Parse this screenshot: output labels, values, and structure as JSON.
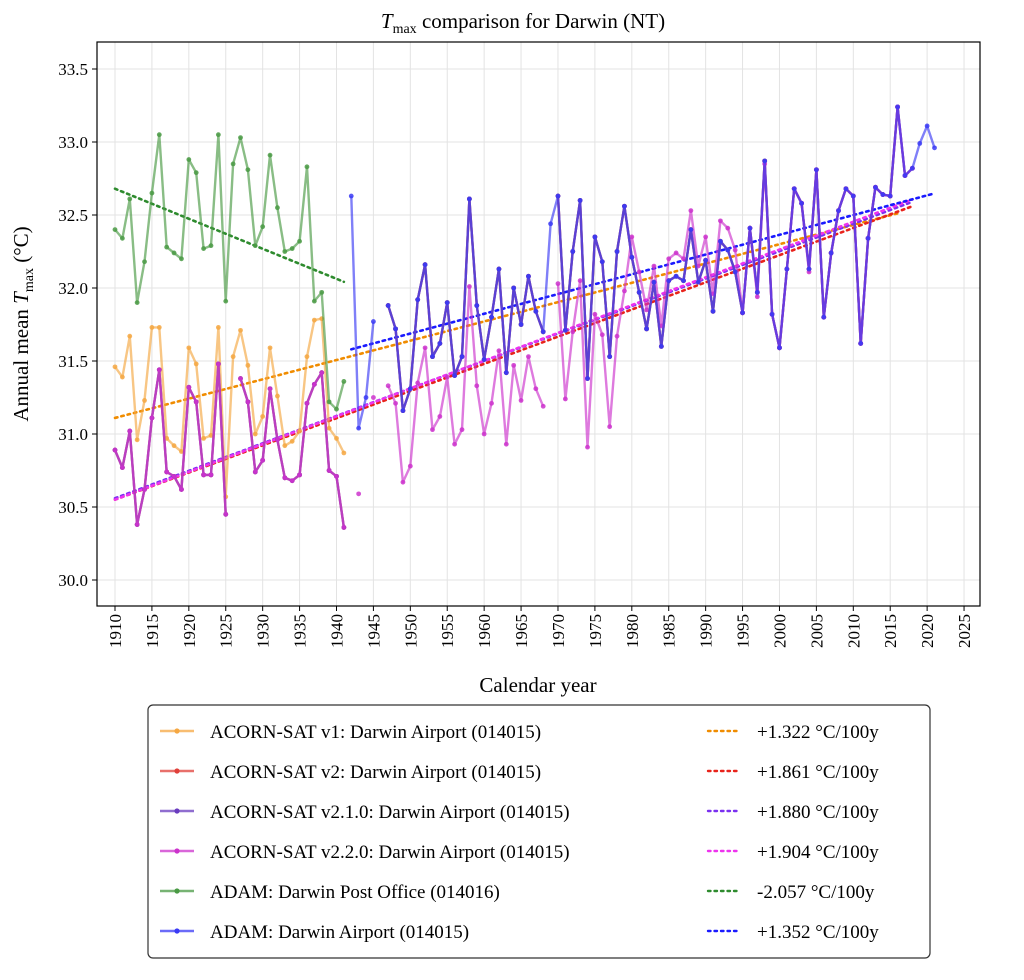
{
  "chart_data": {
    "type": "line",
    "title": {
      "symbol": "T",
      "sub": "max",
      "rest": " comparison for Darwin (NT)"
    },
    "xlabel": "Calendar year",
    "ylabel": {
      "pre": "Annual mean ",
      "symbol": "T",
      "sub": "max",
      "post": " (°C)"
    },
    "xlim": [
      1907.5,
      2029
    ],
    "ylim": [
      29.82,
      33.68
    ],
    "xticks": [
      "1910",
      "1915",
      "1920",
      "1925",
      "1930",
      "1935",
      "1940",
      "1945",
      "1950",
      "1955",
      "1960",
      "1965",
      "1970",
      "1975",
      "1980",
      "1985",
      "1990",
      "1995",
      "2000",
      "2005",
      "2010",
      "2015",
      "2020",
      "2025"
    ],
    "yticks": [
      "30.0",
      "30.5",
      "31.0",
      "31.5",
      "32.0",
      "32.5",
      "33.0",
      "33.5"
    ],
    "grid": true,
    "legend_position": "below",
    "series": [
      {
        "name": "ACORN-SAT v1: Darwin Airport (014015)",
        "color": "#f5a742",
        "start": 1910,
        "values": [
          31.46,
          31.39,
          31.67,
          30.96,
          31.23,
          31.73,
          31.73,
          30.97,
          30.92,
          30.88,
          31.59,
          31.48,
          30.97,
          30.99,
          31.73,
          30.57,
          31.53,
          31.71,
          31.47,
          31.0,
          31.12,
          31.59,
          31.26,
          30.92,
          30.95,
          31.02,
          31.53,
          31.78,
          31.79,
          31.04,
          30.97,
          30.87,
          null,
          null,
          null,
          null,
          null,
          31.88,
          31.72,
          31.16,
          31.31,
          31.92,
          32.16,
          31.53,
          31.62,
          31.9,
          31.4,
          31.53,
          32.61,
          31.88,
          31.51,
          31.8,
          32.13,
          31.42,
          32.0,
          31.75,
          32.08,
          31.84,
          31.7,
          null,
          32.63,
          31.71,
          32.25,
          32.6,
          31.38,
          32.35,
          32.18,
          31.53,
          32.25,
          32.56,
          32.21,
          31.97,
          31.72,
          32.04,
          31.6,
          32.05,
          32.08,
          32.05,
          32.4,
          32.04,
          32.19,
          31.84,
          32.32,
          32.26,
          32.11,
          31.83,
          32.41,
          31.97,
          32.87,
          31.82,
          31.59,
          32.13,
          32.68,
          32.58,
          32.13,
          32.81,
          31.8,
          32.24,
          32.53,
          32.68,
          32.63,
          31.62,
          32.34,
          32.69,
          32.64,
          32.63,
          33.24
        ],
        "trend": {
          "label": "+1.322 °C/100y",
          "color": "#f08c00",
          "start_year": 1910,
          "end_year": 2016,
          "start_value": 31.11,
          "slope_per_100y": 1.322
        }
      },
      {
        "name": "ACORN-SAT v2: Darwin Airport (014015)",
        "color": "#e0403a",
        "start": 1910,
        "values": [
          30.89,
          30.77,
          31.02,
          30.38,
          30.62,
          31.11,
          31.44,
          30.74,
          30.71,
          30.62,
          31.32,
          31.22,
          30.72,
          30.72,
          31.48,
          30.45,
          null,
          31.38,
          31.22,
          30.74,
          30.82,
          31.31,
          30.96,
          30.7,
          30.68,
          30.72,
          31.21,
          31.34,
          31.42,
          30.75,
          30.71,
          30.36,
          null,
          null,
          null,
          null,
          null,
          31.88,
          31.72,
          31.16,
          31.31,
          31.92,
          32.16,
          31.53,
          31.62,
          31.9,
          31.4,
          31.53,
          32.61,
          31.88,
          31.51,
          31.8,
          32.13,
          31.42,
          32.0,
          31.75,
          32.08,
          31.84,
          31.7,
          null,
          32.63,
          31.71,
          32.25,
          32.6,
          31.38,
          32.35,
          32.18,
          31.53,
          32.25,
          32.56,
          32.21,
          31.97,
          31.72,
          32.04,
          31.6,
          32.05,
          32.08,
          32.05,
          32.4,
          32.04,
          32.19,
          31.84,
          32.32,
          32.26,
          32.11,
          31.83,
          32.41,
          31.97,
          32.87,
          31.82,
          31.59,
          32.13,
          32.68,
          32.58,
          32.13,
          32.81,
          31.8,
          32.24,
          32.53,
          32.68,
          32.63,
          31.62,
          32.34,
          32.69,
          32.64,
          32.63,
          33.24,
          32.77,
          32.82
        ],
        "trend": {
          "label": "+1.861 °C/100y",
          "color": "#e8231b",
          "start_year": 1910,
          "end_year": 2018,
          "start_value": 30.55,
          "slope_per_100y": 1.861
        }
      },
      {
        "name": "ACORN-SAT v2.1.0: Darwin Airport (014015)",
        "color": "#6a3cbf",
        "start": 1910,
        "values": [
          30.89,
          30.77,
          31.02,
          30.38,
          30.62,
          31.11,
          31.44,
          30.74,
          30.71,
          30.62,
          31.32,
          31.22,
          30.72,
          30.72,
          31.48,
          30.45,
          null,
          31.38,
          31.22,
          30.74,
          30.82,
          31.31,
          30.96,
          30.7,
          30.68,
          30.72,
          31.21,
          31.34,
          31.42,
          30.75,
          30.71,
          30.36,
          null,
          null,
          null,
          null,
          null,
          31.88,
          31.72,
          31.16,
          31.31,
          31.92,
          32.16,
          31.53,
          31.62,
          31.9,
          31.4,
          31.53,
          32.61,
          31.88,
          31.51,
          31.8,
          32.13,
          31.42,
          32.0,
          31.75,
          32.08,
          31.84,
          31.7,
          null,
          32.63,
          31.71,
          32.25,
          32.6,
          31.38,
          32.35,
          32.18,
          31.53,
          32.25,
          32.56,
          32.21,
          31.97,
          31.72,
          32.04,
          31.6,
          32.05,
          32.08,
          32.05,
          32.4,
          32.04,
          32.19,
          31.84,
          32.32,
          32.26,
          32.11,
          31.83,
          32.41,
          31.97,
          32.87,
          31.82,
          31.59,
          32.13,
          32.68,
          32.58,
          32.13,
          32.81,
          31.8,
          32.24,
          32.53,
          32.68,
          32.63,
          31.62,
          32.34,
          32.69,
          32.64,
          32.63,
          33.24,
          32.77,
          32.82
        ],
        "trend": {
          "label": "+1.880 °C/100y",
          "color": "#7a30f0",
          "start_year": 1910,
          "end_year": 2018,
          "start_value": 30.56,
          "slope_per_100y": 1.88
        }
      },
      {
        "name": "ACORN-SAT v2.2.0: Darwin Airport (014015)",
        "color": "#cc33cc",
        "start": 1910,
        "values": [
          30.89,
          30.77,
          31.02,
          30.38,
          30.62,
          31.11,
          31.44,
          30.74,
          30.71,
          30.62,
          31.32,
          31.22,
          30.72,
          30.72,
          31.48,
          30.45,
          null,
          31.38,
          31.22,
          30.74,
          30.82,
          31.31,
          30.96,
          30.7,
          30.68,
          30.72,
          31.21,
          31.34,
          31.42,
          30.75,
          30.71,
          30.36,
          null,
          30.59,
          null,
          31.25,
          null,
          31.33,
          31.21,
          30.67,
          30.78,
          31.35,
          31.59,
          31.03,
          31.12,
          31.39,
          30.93,
          31.03,
          32.01,
          31.33,
          31.0,
          31.21,
          31.57,
          30.93,
          31.47,
          31.23,
          31.53,
          31.31,
          31.19,
          null,
          32.03,
          31.24,
          31.7,
          32.05,
          30.91,
          31.82,
          31.68,
          31.05,
          31.67,
          31.98,
          32.35,
          32.11,
          31.85,
          32.15,
          31.74,
          32.2,
          32.24,
          32.2,
          32.53,
          32.15,
          32.35,
          31.96,
          32.46,
          32.41,
          32.26,
          31.83,
          32.41,
          31.94,
          32.85,
          31.82,
          31.59,
          32.13,
          32.68,
          32.58,
          32.11,
          32.81,
          31.8,
          32.24,
          32.53,
          32.68,
          32.63,
          31.62,
          32.34,
          32.69,
          32.64,
          32.63,
          33.24,
          32.77,
          32.82
        ],
        "trend": {
          "label": "+1.904 °C/100y",
          "color": "#ee33ee",
          "start_year": 1910,
          "end_year": 2018,
          "start_value": 30.55,
          "slope_per_100y": 1.904
        }
      },
      {
        "name": "ADAM: Darwin Post Office (014016)",
        "color": "#4a9a44",
        "start": 1910,
        "values": [
          32.4,
          32.34,
          32.61,
          31.9,
          32.18,
          32.65,
          33.05,
          32.28,
          32.24,
          32.2,
          32.88,
          32.79,
          32.27,
          32.29,
          33.05,
          31.91,
          32.85,
          33.03,
          32.81,
          32.29,
          32.42,
          32.91,
          32.55,
          32.25,
          32.27,
          32.32,
          32.83,
          31.91,
          31.97,
          31.22,
          31.17,
          31.36
        ],
        "trend": {
          "label": "-2.057 °C/100y",
          "color": "#2e8b2e",
          "start_year": 1910,
          "end_year": 1941,
          "start_value": 32.68,
          "slope_per_100y": -2.057
        }
      },
      {
        "name": "ADAM: Darwin Airport (014015)",
        "color": "#3a3af5",
        "start": 1942,
        "values": [
          32.63,
          31.04,
          31.25,
          31.77,
          null,
          31.88,
          31.72,
          31.16,
          31.31,
          31.92,
          32.16,
          31.53,
          31.62,
          31.9,
          31.4,
          31.53,
          32.61,
          31.88,
          31.51,
          31.8,
          32.13,
          31.42,
          32.0,
          31.75,
          32.08,
          31.84,
          31.7,
          32.44,
          32.63,
          31.71,
          32.25,
          32.6,
          31.38,
          32.35,
          32.18,
          31.53,
          32.25,
          32.56,
          32.21,
          31.97,
          31.72,
          32.04,
          31.6,
          32.05,
          32.08,
          32.05,
          32.4,
          32.04,
          32.19,
          31.84,
          32.32,
          32.26,
          32.11,
          31.83,
          32.41,
          31.97,
          32.87,
          31.82,
          31.59,
          32.13,
          32.68,
          32.58,
          32.13,
          32.81,
          31.8,
          32.24,
          32.53,
          32.68,
          32.63,
          31.62,
          32.34,
          32.69,
          32.64,
          32.63,
          33.24,
          32.77,
          32.82,
          32.99,
          33.11,
          32.96
        ],
        "trend": {
          "label": "+1.352 °C/100y",
          "color": "#1a1aff",
          "start_year": 1942,
          "end_year": 2021,
          "start_value": 31.58,
          "slope_per_100y": 1.352
        }
      }
    ]
  }
}
